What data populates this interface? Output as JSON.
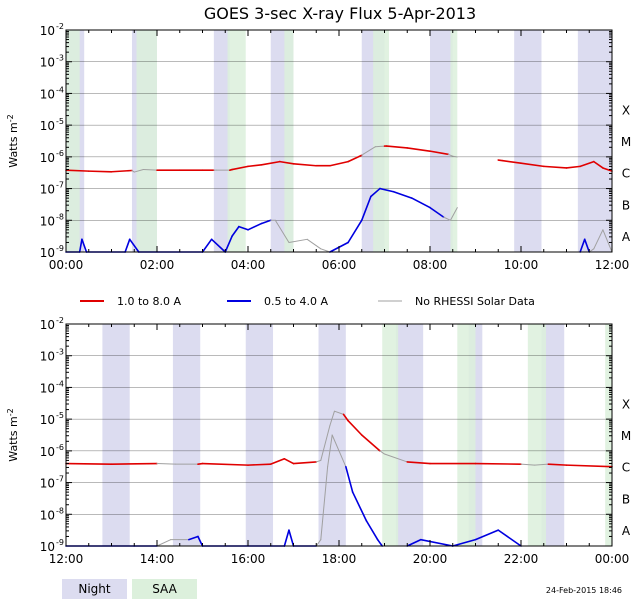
{
  "chart_data": {
    "type": "line",
    "title": "GOES 3-sec X-ray Flux     5-Apr-2013",
    "ylabel": "Watts m",
    "ylabel_sup": "-2",
    "y_scale": "log",
    "ylim": [
      "1e-9",
      "1e-2"
    ],
    "y_ticks": [
      {
        "base": "10",
        "exp": "-2"
      },
      {
        "base": "10",
        "exp": "-3"
      },
      {
        "base": "10",
        "exp": "-4"
      },
      {
        "base": "10",
        "exp": "-5"
      },
      {
        "base": "10",
        "exp": "-6"
      },
      {
        "base": "10",
        "exp": "-7"
      },
      {
        "base": "10",
        "exp": "-8"
      },
      {
        "base": "10",
        "exp": "-9"
      }
    ],
    "flare_classes": [
      "X",
      "M",
      "C",
      "B",
      "A"
    ],
    "flare_class_levels": [
      -4,
      -5,
      -6,
      -7,
      -8
    ],
    "legend": [
      {
        "label": "1.0 to 8.0 A",
        "color": "#e00000"
      },
      {
        "label": "0.5 to 4.0 A",
        "color": "#0000e0"
      },
      {
        "label": "No RHESSI Solar Data",
        "color": "#a0a0a0"
      }
    ],
    "bands_legend": [
      {
        "label": "Night",
        "color": "#dcdcf0"
      },
      {
        "label": "SAA",
        "color": "#dcf0dc"
      }
    ],
    "footer": "24-Feb-2015 18:46",
    "panels": [
      {
        "xticks": [
          "00:00",
          "02:00",
          "04:00",
          "06:00",
          "08:00",
          "10:00",
          "12:00"
        ],
        "xlim_hours": [
          0,
          12
        ],
        "night": [
          [
            0.0,
            0.4
          ],
          [
            1.45,
            2.0
          ],
          [
            3.25,
            3.6
          ],
          [
            4.5,
            5.0
          ],
          [
            6.5,
            7.0
          ],
          [
            8.0,
            8.5
          ],
          [
            9.85,
            10.45
          ],
          [
            11.25,
            12.0
          ]
        ],
        "saa": [
          [
            0.0,
            0.3
          ],
          [
            1.55,
            2.0
          ],
          [
            3.55,
            3.95
          ],
          [
            4.8,
            5.0
          ],
          [
            6.75,
            7.1
          ],
          [
            8.45,
            8.6
          ]
        ],
        "long_channel": [
          [
            0.0,
            -6.42
          ],
          [
            0.5,
            -6.45
          ],
          [
            1.0,
            -6.47
          ],
          [
            1.45,
            -6.43
          ],
          [
            1.5,
            -6.48,
            "g"
          ],
          [
            1.7,
            -6.4,
            "g"
          ],
          [
            2.0,
            -6.42,
            "g"
          ],
          [
            2.05,
            -6.42
          ],
          [
            2.5,
            -6.42
          ],
          [
            3.0,
            -6.42
          ],
          [
            3.25,
            -6.42
          ],
          [
            3.3,
            -6.42,
            "g"
          ],
          [
            3.6,
            -6.42,
            "g"
          ],
          [
            3.65,
            -6.4
          ],
          [
            4.0,
            -6.3
          ],
          [
            4.3,
            -6.25
          ],
          [
            4.7,
            -6.15
          ],
          [
            5.0,
            -6.22
          ],
          [
            5.5,
            -6.28
          ],
          [
            5.8,
            -6.28
          ],
          [
            6.2,
            -6.15
          ],
          [
            6.5,
            -5.95
          ],
          [
            6.55,
            -5.9,
            "g"
          ],
          [
            6.8,
            -5.68,
            "g"
          ],
          [
            7.0,
            -5.66,
            "g"
          ],
          [
            7.05,
            -5.66
          ],
          [
            7.5,
            -5.72
          ],
          [
            8.0,
            -5.82
          ],
          [
            8.4,
            -5.92
          ],
          [
            8.5,
            -5.98,
            "g"
          ],
          [
            8.6,
            -6.0,
            "g"
          ],
          [
            null,
            null
          ],
          [
            9.5,
            -6.1,
            "g"
          ],
          [
            9.6,
            -6.12
          ],
          [
            10.0,
            -6.2
          ],
          [
            10.5,
            -6.3
          ],
          [
            11.0,
            -6.35
          ],
          [
            11.3,
            -6.3
          ],
          [
            11.6,
            -6.15
          ],
          [
            11.8,
            -6.35
          ],
          [
            12.0,
            -6.45
          ]
        ],
        "short_channel": [
          [
            0.0,
            -9.0
          ],
          [
            0.3,
            -9.0
          ],
          [
            0.35,
            -8.6
          ],
          [
            0.45,
            -9.0
          ],
          [
            1.3,
            -9.0
          ],
          [
            1.4,
            -8.6
          ],
          [
            1.6,
            -9.0
          ],
          [
            3.0,
            -9.0
          ],
          [
            3.2,
            -8.6
          ],
          [
            3.5,
            -9.0
          ],
          [
            3.65,
            -8.5
          ],
          [
            3.8,
            -8.2
          ],
          [
            4.0,
            -8.3
          ],
          [
            4.3,
            -8.1
          ],
          [
            4.5,
            -8.0
          ],
          [
            4.6,
            -8.0,
            "g"
          ],
          [
            4.9,
            -8.7,
            "g"
          ],
          [
            5.3,
            -8.6,
            "g"
          ],
          [
            5.6,
            -8.9,
            "g"
          ],
          [
            5.8,
            -9.0,
            "g"
          ],
          [
            6.2,
            -8.7
          ],
          [
            6.5,
            -8.0
          ],
          [
            6.7,
            -7.25
          ],
          [
            6.9,
            -7.0
          ],
          [
            7.2,
            -7.1
          ],
          [
            7.6,
            -7.3
          ],
          [
            8.0,
            -7.6
          ],
          [
            8.3,
            -7.9
          ],
          [
            8.45,
            -8.0,
            "g"
          ],
          [
            8.6,
            -7.6,
            "g"
          ],
          [
            null,
            null
          ],
          [
            11.3,
            -9.0
          ],
          [
            11.4,
            -8.6
          ],
          [
            11.5,
            -9.0
          ],
          [
            11.6,
            -8.9,
            "g"
          ],
          [
            11.8,
            -8.3,
            "g"
          ],
          [
            12.0,
            -9.0,
            "g"
          ]
        ]
      },
      {
        "xticks": [
          "12:00",
          "14:00",
          "16:00",
          "18:00",
          "20:00",
          "22:00",
          "00:00"
        ],
        "xlim_hours": [
          12,
          24
        ],
        "night": [
          [
            12.8,
            13.4
          ],
          [
            14.35,
            14.95
          ],
          [
            15.95,
            16.55
          ],
          [
            17.55,
            18.15
          ],
          [
            19.25,
            19.85
          ],
          [
            20.85,
            21.15
          ],
          [
            22.45,
            22.95
          ]
        ],
        "saa": [
          [
            18.95,
            19.3
          ],
          [
            20.6,
            21.0
          ],
          [
            22.15,
            22.55
          ],
          [
            23.85,
            24.0
          ]
        ],
        "long_channel": [
          [
            12.0,
            -6.4
          ],
          [
            13.0,
            -6.42
          ],
          [
            14.0,
            -6.4
          ],
          [
            14.4,
            -6.42,
            "g"
          ],
          [
            14.9,
            -6.42,
            "g"
          ],
          [
            15.0,
            -6.4
          ],
          [
            16.0,
            -6.45
          ],
          [
            16.5,
            -6.42
          ],
          [
            16.8,
            -6.25
          ],
          [
            17.0,
            -6.4
          ],
          [
            17.5,
            -6.35
          ],
          [
            17.6,
            -6.3,
            "g"
          ],
          [
            17.8,
            -5.2,
            "g"
          ],
          [
            17.9,
            -4.75,
            "g"
          ],
          [
            18.1,
            -4.85,
            "g"
          ],
          [
            18.2,
            -5.05
          ],
          [
            18.5,
            -5.5
          ],
          [
            18.9,
            -6.0
          ],
          [
            19.0,
            -6.1,
            "g"
          ],
          [
            19.5,
            -6.35,
            "g"
          ],
          [
            20.0,
            -6.4
          ],
          [
            21.0,
            -6.4
          ],
          [
            22.0,
            -6.42
          ],
          [
            22.3,
            -6.45,
            "g"
          ],
          [
            22.6,
            -6.42,
            "g"
          ],
          [
            23.0,
            -6.45
          ],
          [
            24.0,
            -6.5
          ]
        ],
        "short_channel": [
          [
            12.0,
            -9.0
          ],
          [
            13.5,
            -9.0
          ],
          [
            14.0,
            -9.0
          ],
          [
            14.3,
            -8.8,
            "g"
          ],
          [
            14.7,
            -8.8,
            "g"
          ],
          [
            14.9,
            -8.7
          ],
          [
            15.0,
            -9.0
          ],
          [
            16.8,
            -9.0
          ],
          [
            16.9,
            -8.5
          ],
          [
            17.0,
            -9.0
          ],
          [
            17.5,
            -9.0
          ],
          [
            17.6,
            -8.8,
            "g"
          ],
          [
            17.75,
            -6.5,
            "g"
          ],
          [
            17.85,
            -5.5,
            "g"
          ],
          [
            18.0,
            -6.0,
            "g"
          ],
          [
            18.15,
            -6.5,
            "g"
          ],
          [
            18.3,
            -7.3
          ],
          [
            18.6,
            -8.2
          ],
          [
            18.85,
            -8.8
          ],
          [
            18.95,
            -9.0
          ],
          [
            19.0,
            -9.0,
            "g"
          ],
          [
            19.5,
            -9.0,
            "g"
          ],
          [
            19.8,
            -8.8
          ],
          [
            20.5,
            -9.0
          ],
          [
            21.0,
            -8.8
          ],
          [
            21.5,
            -8.5
          ],
          [
            22.0,
            -9.0
          ],
          [
            22.4,
            -9.0,
            "g"
          ],
          [
            24.0,
            -9.0,
            "g"
          ]
        ]
      }
    ]
  }
}
